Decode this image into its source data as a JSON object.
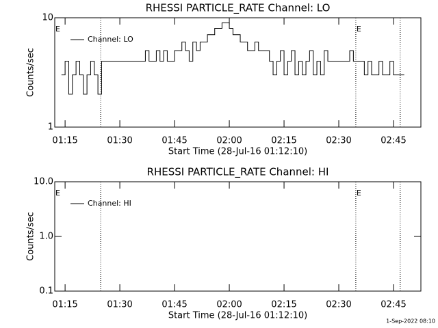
{
  "chart_data": [
    {
      "type": "line",
      "title": "RHESSI PARTICLE_RATE Channel: LO",
      "xlabel": "Start Time (28-Jul-16 01:12:10)",
      "ylabel": "Counts/sec",
      "log_y": true,
      "ylim": [
        1,
        10
      ],
      "yticks": [
        1,
        10
      ],
      "xlim": [
        "01:12:10",
        "02:52:30"
      ],
      "xticks": [
        "01:15",
        "01:30",
        "01:45",
        "02:00",
        "02:15",
        "02:30",
        "02:45"
      ],
      "vlines": [
        "01:24:45",
        "02:34:40",
        "02:46:50"
      ],
      "annotations": [
        {
          "text": "E",
          "x": "01:12:10"
        },
        {
          "text": "E",
          "x": "02:34:40"
        }
      ],
      "legend": "upper left",
      "x": [
        "01:14",
        "01:15",
        "01:16",
        "01:17",
        "01:18",
        "01:19",
        "01:20",
        "01:21",
        "01:22",
        "01:23",
        "01:24",
        "01:25",
        "01:26",
        "01:27",
        "01:28",
        "01:29",
        "01:30",
        "01:31",
        "01:32",
        "01:33",
        "01:34",
        "01:35",
        "01:36",
        "01:37",
        "01:38",
        "01:39",
        "01:40",
        "01:41",
        "01:42",
        "01:43",
        "01:44",
        "01:45",
        "01:46",
        "01:47",
        "01:48",
        "01:49",
        "01:50",
        "01:51",
        "01:52",
        "01:53",
        "01:54",
        "01:55",
        "01:56",
        "01:57",
        "01:58",
        "01:59",
        "02:00",
        "02:01",
        "02:02",
        "02:03",
        "02:04",
        "02:05",
        "02:06",
        "02:07",
        "02:08",
        "02:09",
        "02:10",
        "02:11",
        "02:12",
        "02:13",
        "02:14",
        "02:15",
        "02:16",
        "02:17",
        "02:18",
        "02:19",
        "02:20",
        "02:21",
        "02:22",
        "02:23",
        "02:24",
        "02:25",
        "02:26",
        "02:27",
        "02:28",
        "02:29",
        "02:30",
        "02:31",
        "02:32",
        "02:33",
        "02:34",
        "02:35",
        "02:36",
        "02:37",
        "02:38",
        "02:39",
        "02:40",
        "02:41",
        "02:42",
        "02:43",
        "02:44",
        "02:45",
        "02:46",
        "02:47"
      ],
      "series": [
        {
          "name": "Channel: LO",
          "color": "#000000",
          "values": [
            3,
            4,
            2,
            3,
            4,
            3,
            2,
            3,
            4,
            3,
            2,
            4,
            4,
            4,
            4,
            4,
            4,
            4,
            4,
            4,
            4,
            4,
            4,
            5,
            4,
            4,
            5,
            4,
            5,
            4,
            4,
            5,
            5,
            6,
            5,
            4,
            6,
            5,
            6,
            6,
            7,
            7,
            8,
            8,
            9,
            9,
            8,
            7,
            7,
            6,
            6,
            5,
            5,
            6,
            5,
            5,
            5,
            4,
            3,
            4,
            5,
            3,
            4,
            5,
            3,
            4,
            3,
            4,
            5,
            3,
            4,
            3,
            5,
            4,
            4,
            4,
            4,
            4,
            4,
            5,
            4,
            4,
            4,
            3,
            4,
            3,
            3,
            4,
            3,
            3,
            4,
            3,
            3,
            3
          ]
        }
      ]
    },
    {
      "type": "line",
      "title": "RHESSI PARTICLE_RATE Channel: HI",
      "xlabel": "Start Time (28-Jul-16 01:12:10)",
      "ylabel": "Counts/sec",
      "log_y": true,
      "ylim": [
        0.1,
        10
      ],
      "yticks": [
        {
          "value": 0.1,
          "label": "0.1"
        },
        {
          "value": 1,
          "label": "1.0"
        },
        {
          "value": 10,
          "label": "10.0"
        }
      ],
      "xlim": [
        "01:12:10",
        "02:52:30"
      ],
      "xticks": [
        "01:15",
        "01:30",
        "01:45",
        "02:00",
        "02:15",
        "02:30",
        "02:45"
      ],
      "vlines": [
        "01:24:45",
        "02:34:40",
        "02:46:50"
      ],
      "annotations": [
        {
          "text": "E",
          "x": "01:12:10"
        },
        {
          "text": "E",
          "x": "02:34:40"
        }
      ],
      "legend": "upper left",
      "x": [],
      "series": [
        {
          "name": "Channel: HI",
          "color": "#000000",
          "values": []
        }
      ]
    }
  ],
  "footer": "1-Sep-2022 08:10"
}
